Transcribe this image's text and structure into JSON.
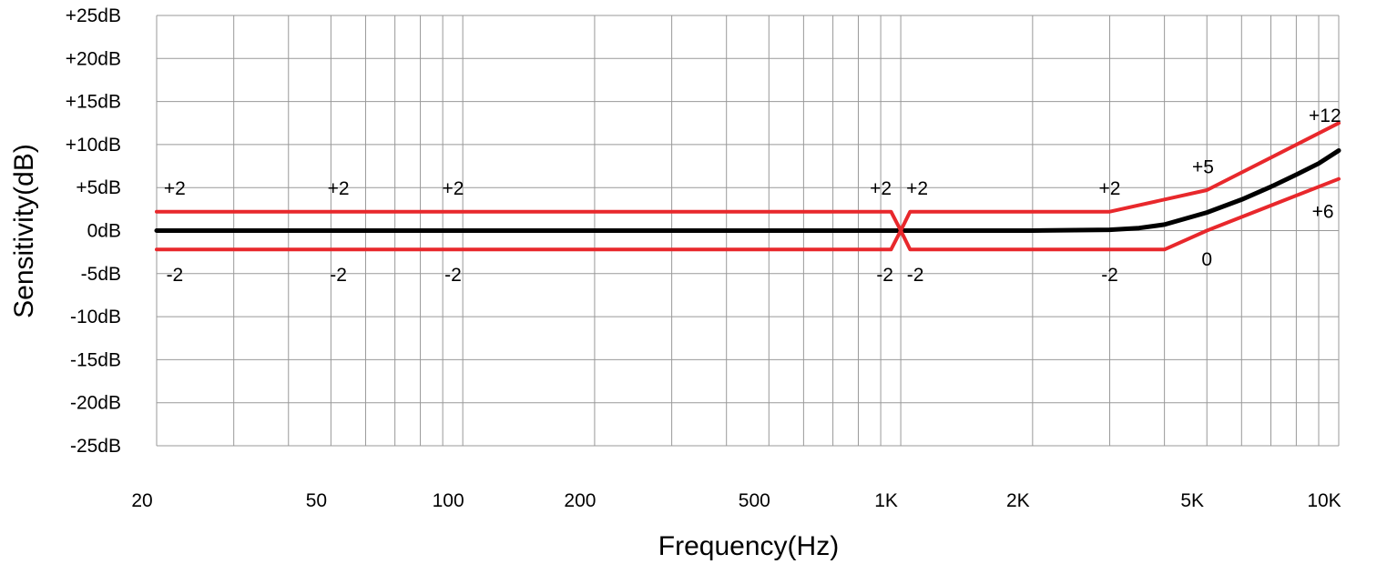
{
  "chart_data": {
    "type": "line",
    "xlabel": "Frequency(Hz)",
    "ylabel": "Sensitivity(dB)",
    "xscale": "log",
    "xlim": [
      20,
      10000
    ],
    "ylim": [
      -25,
      25
    ],
    "grid": true,
    "colors": {
      "curve": "#000000",
      "limits": "#e8282c",
      "grid": "#999999"
    },
    "y_ticks": [
      {
        "value": 25,
        "label": "+25dB"
      },
      {
        "value": 20,
        "label": "+20dB"
      },
      {
        "value": 15,
        "label": "+15dB"
      },
      {
        "value": 10,
        "label": "+10dB"
      },
      {
        "value": 5,
        "label": "+5dB"
      },
      {
        "value": 0,
        "label": "0dB"
      },
      {
        "value": -5,
        "label": "-5dB"
      },
      {
        "value": -10,
        "label": "-10dB"
      },
      {
        "value": -15,
        "label": "-15dB"
      },
      {
        "value": -20,
        "label": "-20dB"
      },
      {
        "value": -25,
        "label": "-25dB"
      }
    ],
    "x_ticks": [
      {
        "value": 20,
        "label": "20"
      },
      {
        "value": 50,
        "label": "50"
      },
      {
        "value": 100,
        "label": "100"
      },
      {
        "value": 200,
        "label": "200"
      },
      {
        "value": 500,
        "label": "500"
      },
      {
        "value": 1000,
        "label": "1K"
      },
      {
        "value": 2000,
        "label": "2K"
      },
      {
        "value": 5000,
        "label": "5K"
      },
      {
        "value": 10000,
        "label": "10K"
      }
    ],
    "x_gridlines": [
      20,
      30,
      40,
      50,
      60,
      70,
      80,
      90,
      100,
      200,
      300,
      400,
      500,
      600,
      700,
      800,
      900,
      1000,
      2000,
      3000,
      4000,
      5000,
      6000,
      7000,
      8000,
      9000,
      10000
    ],
    "series": [
      {
        "role": "response",
        "x": [
          20,
          100,
          500,
          1000,
          2000,
          3000,
          3500,
          4000,
          5000,
          6000,
          7000,
          8000,
          9000,
          10000
        ],
        "y": [
          0,
          0,
          0,
          0,
          0,
          0.1,
          0.3,
          0.7,
          2.1,
          3.6,
          5.1,
          6.5,
          7.8,
          9.3
        ]
      },
      {
        "role": "upper-limit-low-band",
        "x": [
          20,
          950,
          1000
        ],
        "y": [
          2.2,
          2.2,
          0
        ]
      },
      {
        "role": "upper-limit-high-band",
        "x": [
          1000,
          1050,
          3000,
          5000,
          10000
        ],
        "y": [
          0,
          2.2,
          2.2,
          4.7,
          12.5
        ]
      },
      {
        "role": "lower-limit-low-band",
        "x": [
          20,
          950,
          1000
        ],
        "y": [
          -2.2,
          -2.2,
          0
        ]
      },
      {
        "role": "lower-limit-high-band",
        "x": [
          1000,
          1050,
          4000,
          5000,
          10000
        ],
        "y": [
          0,
          -2.2,
          -2.2,
          0,
          6
        ]
      }
    ],
    "annotations": [
      {
        "text": "+2",
        "x": 22,
        "y": 5
      },
      {
        "text": "+2",
        "x": 52,
        "y": 5
      },
      {
        "text": "+2",
        "x": 95,
        "y": 5
      },
      {
        "text": "+2",
        "x": 900,
        "y": 5
      },
      {
        "text": "+2",
        "x": 1090,
        "y": 5
      },
      {
        "text": "+2",
        "x": 3000,
        "y": 5
      },
      {
        "text": "+5",
        "x": 4900,
        "y": 7.5
      },
      {
        "text": "+12",
        "x": 9300,
        "y": 13.5
      },
      {
        "text": "+6",
        "x": 9200,
        "y": 2.3
      },
      {
        "text": "0",
        "x": 5000,
        "y": -3.2
      },
      {
        "text": "-2",
        "x": 22,
        "y": -5
      },
      {
        "text": "-2",
        "x": 52,
        "y": -5
      },
      {
        "text": "-2",
        "x": 95,
        "y": -5
      },
      {
        "text": "-2",
        "x": 920,
        "y": -5
      },
      {
        "text": "-2",
        "x": 1080,
        "y": -5
      },
      {
        "text": "-2",
        "x": 3000,
        "y": -5
      }
    ]
  }
}
